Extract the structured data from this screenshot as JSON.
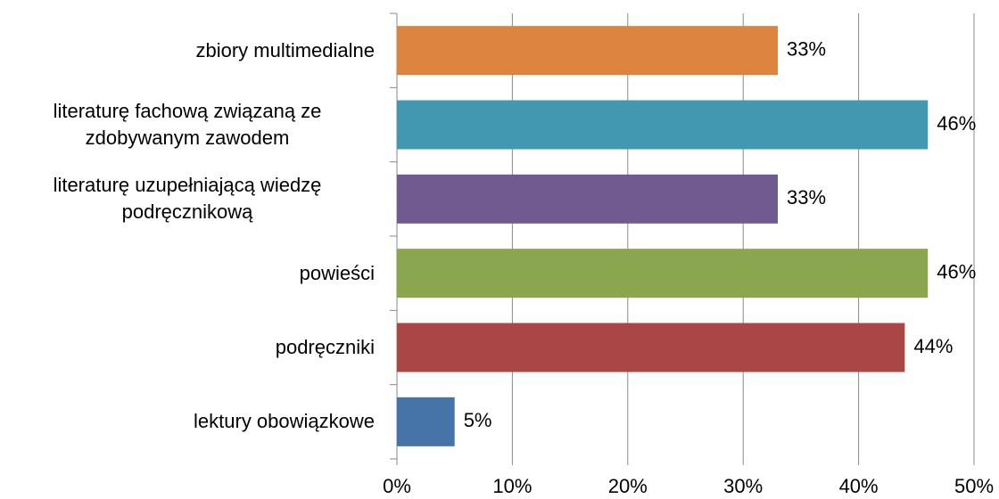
{
  "chart_data": {
    "type": "barh",
    "categories": [
      "zbiory multimedialne",
      "literaturę fachową związaną ze zdobywanym zawodem",
      "literaturę uzupełniającą wiedzę podręcznikową",
      "powieści",
      "podręczniki",
      "lektury obowiązkowe"
    ],
    "values": [
      33,
      46,
      33,
      46,
      44,
      5
    ],
    "value_labels": [
      "33%",
      "46%",
      "33%",
      "46%",
      "44%",
      "5%"
    ],
    "colors": [
      "#dc843e",
      "#4298b0",
      "#715a8f",
      "#8aa64f",
      "#a84745",
      "#4674a8"
    ],
    "xlim": [
      0,
      50
    ],
    "xticks": [
      {
        "value": 0,
        "label": "0%"
      },
      {
        "value": 10,
        "label": "10%"
      },
      {
        "value": 20,
        "label": "20%"
      },
      {
        "value": 30,
        "label": "30%"
      },
      {
        "value": 40,
        "label": "40%"
      },
      {
        "value": 50,
        "label": "50%"
      }
    ],
    "grid": true
  }
}
